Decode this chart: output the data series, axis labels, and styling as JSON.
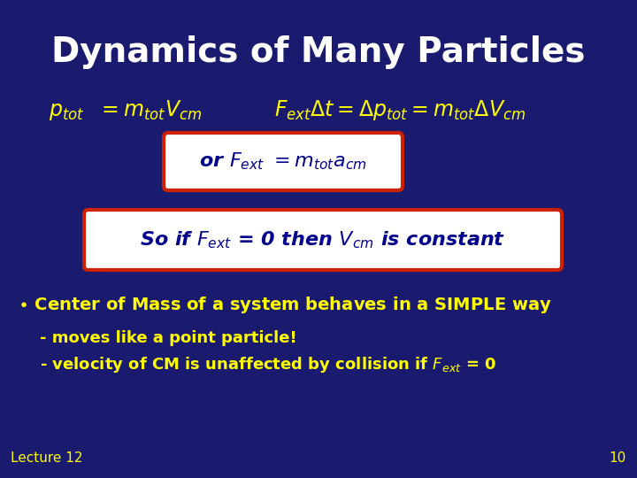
{
  "background_color": "#1a1a6e",
  "title": "Dynamics of Many Particles",
  "title_color": "#ffffff",
  "title_fontsize": 28,
  "eq_color": "#ffff00",
  "box1_text_color": "#00008b",
  "box2_text_color": "#00008b",
  "bullet_color": "#ffff00",
  "footer_color": "#ffff00",
  "box_bg": "#ffffff",
  "box_border": "#cc2200",
  "figsize": [
    7.2,
    5.4
  ],
  "dpi": 100
}
